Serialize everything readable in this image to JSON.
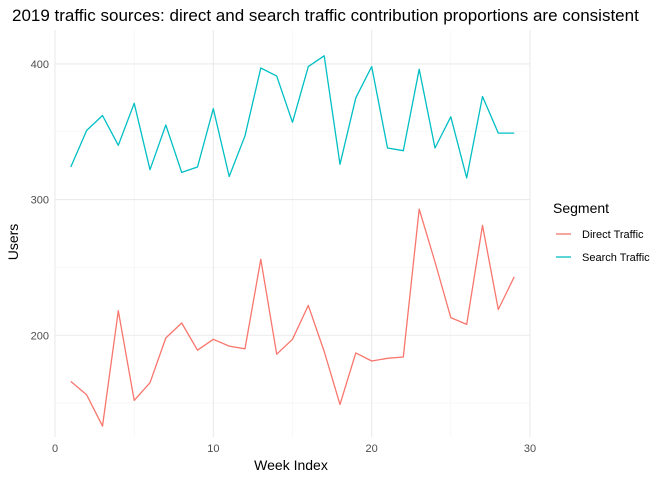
{
  "chart_data": {
    "type": "line",
    "title": "2019 traffic sources: direct and search traffic contribution proportions are consistent",
    "xlabel": "Week Index",
    "ylabel": "Users",
    "xlim": [
      0,
      30
    ],
    "ylim": [
      125,
      425
    ],
    "x_ticks": [
      "0",
      "10",
      "20",
      "30"
    ],
    "y_ticks": [
      "200",
      "300",
      "400"
    ],
    "grid": true,
    "legend": {
      "title": "Segment",
      "placement": "right"
    },
    "x": [
      1,
      2,
      3,
      4,
      5,
      6,
      7,
      8,
      9,
      10,
      11,
      12,
      13,
      14,
      15,
      16,
      17,
      18,
      19,
      20,
      21,
      22,
      23,
      24,
      25,
      26,
      27,
      28,
      29
    ],
    "series": [
      {
        "name": "Direct Traffic",
        "color": "#F8766D",
        "values": [
          166,
          156,
          133,
          218,
          152,
          165,
          198,
          209,
          189,
          197,
          192,
          190,
          256,
          186,
          197,
          222,
          188,
          149,
          187,
          181,
          183,
          184,
          293,
          254,
          213,
          208,
          281,
          219,
          243
        ]
      },
      {
        "name": "Search Traffic",
        "color": "#00BFC4",
        "values": [
          324,
          351,
          362,
          340,
          371,
          322,
          355,
          320,
          324,
          367,
          317,
          347,
          397,
          391,
          357,
          398,
          406,
          326,
          375,
          398,
          338,
          336,
          396,
          338,
          361,
          316,
          376,
          349,
          349
        ]
      }
    ]
  }
}
